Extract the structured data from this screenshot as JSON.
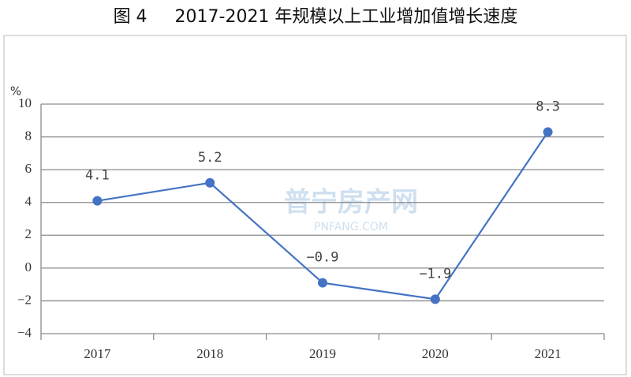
{
  "chart_data": {
    "type": "line",
    "title": "图 4     2017-2021 年规模以上工业增加值增长速度",
    "y_label": "%",
    "watermark": [
      "普宁房产网",
      "PNFANG.COM"
    ],
    "categories": [
      "2017",
      "2018",
      "2019",
      "2020",
      "2021"
    ],
    "values": [
      4.1,
      5.2,
      -0.9,
      -1.9,
      8.3
    ],
    "value_labels": [
      "4.1",
      "5.2",
      "−0.9",
      "−1.9",
      "8.3"
    ],
    "color": "#4472c4",
    "ylim": [
      -4,
      10
    ],
    "yticks": [
      {
        "value": -4,
        "label": "−4"
      },
      {
        "value": -2,
        "label": "−2"
      },
      0,
      2,
      4,
      6,
      8,
      10
    ],
    "grid": true
  }
}
